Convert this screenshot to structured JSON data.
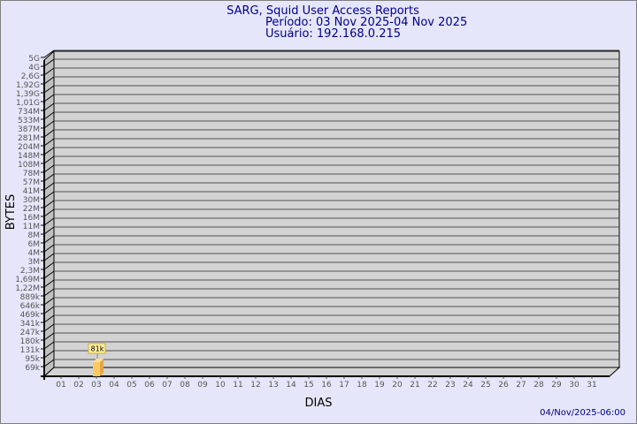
{
  "chart_data": {
    "type": "bar",
    "title": "SARG, Squid User Access Reports",
    "subtitle_period": "Período: 03 Nov 2025-04 Nov 2025",
    "subtitle_user": "Usuário: 192.168.0.215",
    "xlabel": "DIAS",
    "ylabel": "BYTES",
    "y_scale": "log",
    "grid": true,
    "y_tick_labels": [
      "5G",
      "4G",
      "2,6G",
      "1,92G",
      "1,39G",
      "1,01G",
      "734M",
      "533M",
      "387M",
      "281M",
      "204M",
      "148M",
      "108M",
      "78M",
      "57M",
      "41M",
      "30M",
      "22M",
      "16M",
      "11M",
      "8M",
      "6M",
      "4M",
      "3M",
      "2,3M",
      "1,69M",
      "1,22M",
      "889k",
      "646k",
      "469k",
      "341k",
      "247k",
      "180k",
      "131k",
      "95k",
      "69k"
    ],
    "categories": [
      "01",
      "02",
      "03",
      "04",
      "05",
      "06",
      "07",
      "08",
      "09",
      "10",
      "11",
      "12",
      "13",
      "14",
      "15",
      "16",
      "17",
      "18",
      "19",
      "20",
      "21",
      "22",
      "23",
      "24",
      "25",
      "26",
      "27",
      "28",
      "29",
      "30",
      "31"
    ],
    "bars": [
      {
        "category": "03",
        "value_label": "81k"
      }
    ],
    "footer": "04/Nov/2025-06:00",
    "colors": {
      "background": "#e6e6fa",
      "plot": "#d3d3d3",
      "title": "#00008b",
      "bar_front": "#ffc864",
      "bar_side": "#e0a848",
      "label_box": "#fff0a0"
    }
  }
}
